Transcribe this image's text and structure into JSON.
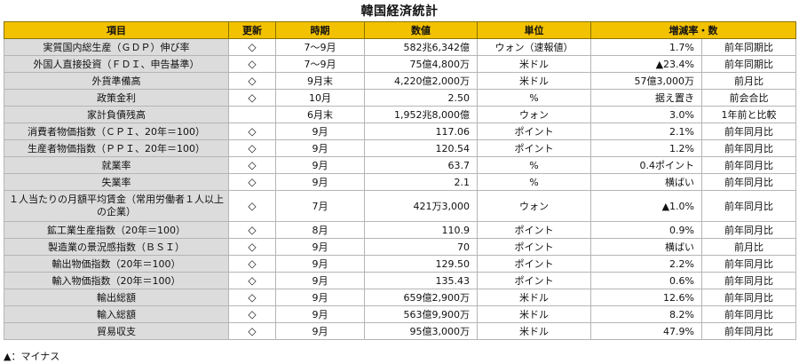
{
  "title": "韓国経済統計",
  "headers": [
    "項目",
    "更新",
    "時期",
    "数値",
    "単位",
    "増減率・数",
    ""
  ],
  "rows": [
    {
      "item": "実質国内総生産（ＧＤＰ）伸び率",
      "update": "◇",
      "period": "7～9月",
      "value": "582兆6,342億",
      "unit": "ウォン（速報値）",
      "change": "1.7%",
      "basis": "前年同期比"
    },
    {
      "item": "外国人直接投資（ＦＤＩ、申告基準）",
      "update": "◇",
      "period": "7～9月",
      "value": "75億4,800万",
      "unit": "米ドル",
      "change": "▲23.4%",
      "basis": "前年同期比"
    },
    {
      "item": "外貨準備高",
      "update": "◇",
      "period": "9月末",
      "value": "4,220億2,000万",
      "unit": "米ドル",
      "change": "57億3,000万",
      "basis": "前月比"
    },
    {
      "item": "政策金利",
      "update": "◇",
      "period": "10月",
      "value": "2.50",
      "unit": "%",
      "change": "据え置き",
      "basis": "前会合比"
    },
    {
      "item": "家計負債残高",
      "update": "",
      "period": "6月末",
      "value": "1,952兆8,000億",
      "unit": "ウォン",
      "change": "3.0%",
      "basis": "1年前と比較"
    },
    {
      "item": "消費者物価指数（ＣＰＩ、20年＝100）",
      "update": "◇",
      "period": "9月",
      "value": "117.06",
      "unit": "ポイント",
      "change": "2.1%",
      "basis": "前年同月比"
    },
    {
      "item": "生産者物価指数（ＰＰＩ、20年＝100）",
      "update": "◇",
      "period": "9月",
      "value": "120.54",
      "unit": "ポイント",
      "change": "1.2%",
      "basis": "前年同月比"
    },
    {
      "item": "就業率",
      "update": "◇",
      "period": "9月",
      "value": "63.7",
      "unit": "%",
      "change": "0.4ポイント",
      "basis": "前年同月比"
    },
    {
      "item": "失業率",
      "update": "◇",
      "period": "9月",
      "value": "2.1",
      "unit": "%",
      "change": "横ばい",
      "basis": "前年同月比"
    },
    {
      "item": "１人当たりの月額平均賃金（常用労働者１人以上の企業）",
      "update": "◇",
      "period": "7月",
      "value": "421万3,000",
      "unit": "ウォン",
      "change": "▲1.0%",
      "basis": "前年同月比",
      "tall": true
    },
    {
      "item": "鉱工業生産指数（20年＝100）",
      "update": "◇",
      "period": "8月",
      "value": "110.9",
      "unit": "ポイント",
      "change": "0.9%",
      "basis": "前年同月比"
    },
    {
      "item": "製造業の景況感指数（ＢＳＩ）",
      "update": "◇",
      "period": "9月",
      "value": "70",
      "unit": "ポイント",
      "change": "横ばい",
      "basis": "前月比"
    },
    {
      "item": "輸出物価指数（20年＝100）",
      "update": "◇",
      "period": "9月",
      "value": "129.50",
      "unit": "ポイント",
      "change": "2.2%",
      "basis": "前年同月比"
    },
    {
      "item": "輸入物価指数（20年＝100）",
      "update": "◇",
      "period": "9月",
      "value": "135.43",
      "unit": "ポイント",
      "change": "0.6%",
      "basis": "前年同月比"
    },
    {
      "item": "輸出総額",
      "update": "◇",
      "period": "9月",
      "value": "659億2,900万",
      "unit": "米ドル",
      "change": "12.6%",
      "basis": "前年同月比"
    },
    {
      "item": "輸入総額",
      "update": "◇",
      "period": "9月",
      "value": "563億9,900万",
      "unit": "米ドル",
      "change": "8.2%",
      "basis": "前年同月比"
    },
    {
      "item": "貿易収支",
      "update": "◇",
      "period": "9月",
      "value": "95億3,000万",
      "unit": "米ドル",
      "change": "47.9%",
      "basis": "前年同月比"
    }
  ],
  "footnote": "▲：マイナス"
}
